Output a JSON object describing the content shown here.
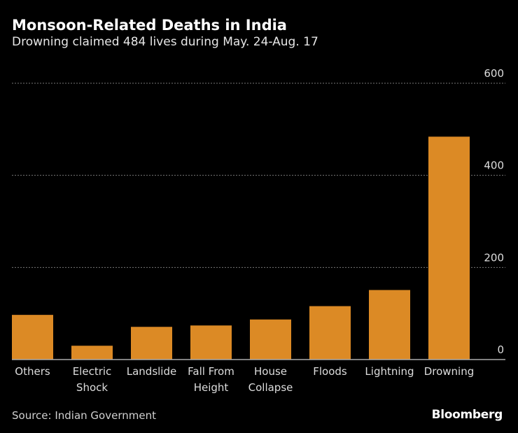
{
  "header": {
    "title": "Monsoon-Related Deaths in India",
    "subtitle": "Drowning claimed 484 lives during May. 24-Aug. 17"
  },
  "footer": {
    "source": "Source: Indian Government",
    "logo": "Bloomberg"
  },
  "chart_data": {
    "type": "bar",
    "categories": [
      [
        "Others"
      ],
      [
        "Electric",
        "Shock"
      ],
      [
        "Landslide"
      ],
      [
        "Fall From",
        "Height"
      ],
      [
        "House",
        "Collapse"
      ],
      [
        "Floods"
      ],
      [
        "Lightning"
      ],
      [
        "Drowning"
      ]
    ],
    "values": [
      97,
      30,
      71,
      74,
      87,
      116,
      151,
      484
    ],
    "ylim": [
      0,
      600
    ],
    "yticks": [
      0,
      200,
      400,
      600
    ],
    "grid": true,
    "bar_color": "#dc8a25",
    "axis_position": "right"
  }
}
